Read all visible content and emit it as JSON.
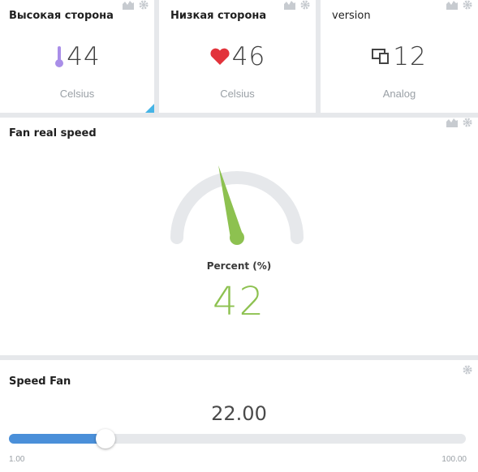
{
  "widgets": [
    {
      "title": "Высокая сторона",
      "icon": "thermometer-icon",
      "value": "44",
      "unit": "Celsius",
      "icon_color": "#a98ee8"
    },
    {
      "title": "Низкая сторона",
      "icon": "heart-icon",
      "value": "46",
      "unit": "Celsius",
      "icon_color": "#e2333b"
    },
    {
      "title": "version",
      "icon": "devices-icon",
      "value": "12",
      "unit": "Analog",
      "icon_color": "#444444"
    }
  ],
  "gauge": {
    "title": "Fan real speed",
    "label": "Percent (%)",
    "value": "42",
    "value_color": "#8dc150",
    "needle_color": "#8dc150",
    "track_color": "#e6e8eb",
    "range": [
      0,
      100
    ],
    "level": 0.42
  },
  "slider": {
    "title": "Speed Fan",
    "value": "22.00",
    "min_label": "1.00",
    "max_label": "100.00",
    "min": 1,
    "max": 100,
    "current": 22,
    "fill_color": "#4a8fd9"
  },
  "colors": {
    "accent_blue": "#45b4e6",
    "tool_icon": "#c7cbd0"
  }
}
